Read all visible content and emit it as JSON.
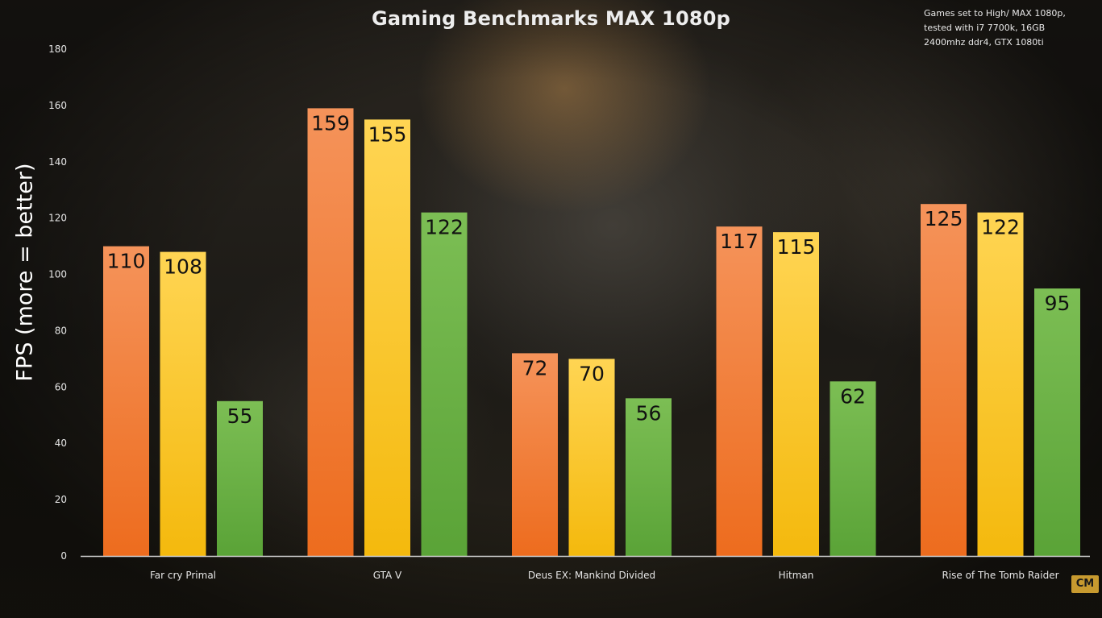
{
  "chart_data": {
    "type": "bar",
    "title": "Gaming Benchmarks MAX 1080p",
    "note": "Games set to High/ MAX 1080p,\ntested with i7 7700k, 16GB\n2400mhz ddr4, GTX 1080ti",
    "ylabel": "FPS (more = better)",
    "xlabel": "",
    "ylim": [
      0,
      180
    ],
    "yticks": [
      0,
      20,
      40,
      60,
      80,
      100,
      120,
      140,
      160,
      180
    ],
    "grid": false,
    "legend": "none",
    "categories": [
      "Far cry Primal",
      "GTA V",
      "Deus EX: Mankind Divided",
      "Hitman",
      "Rise of The Tomb Raider"
    ],
    "series": [
      {
        "values": [
          110,
          159,
          72,
          117,
          125
        ],
        "color_top": "#f5935a",
        "color_bottom": "#ed6c1e"
      },
      {
        "values": [
          108,
          155,
          70,
          115,
          122
        ],
        "color_top": "#ffd553",
        "color_bottom": "#f4b90d"
      },
      {
        "values": [
          55,
          122,
          56,
          62,
          95
        ],
        "color_top": "#7cbe54",
        "color_bottom": "#5aa337"
      }
    ]
  },
  "logo": {
    "text": "CM",
    "color": "#c79a2f"
  }
}
